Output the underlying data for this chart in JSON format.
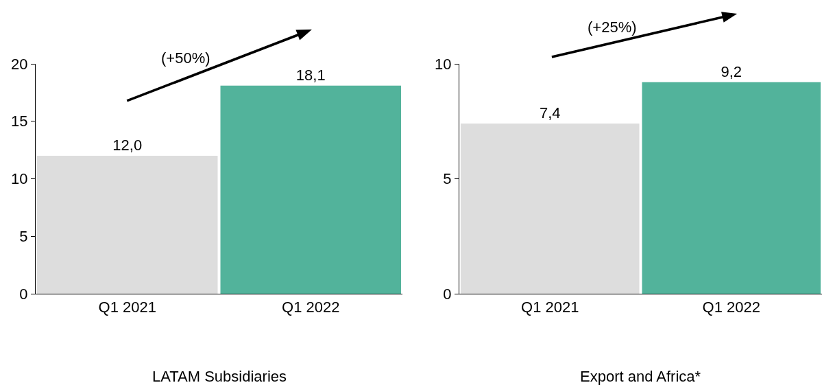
{
  "chart_data": [
    {
      "type": "bar",
      "xlabel": "LATAM Subsidiaries",
      "categories": [
        "Q1 2021",
        "Q1 2022"
      ],
      "values": [
        12.0,
        18.1
      ],
      "colors": [
        "#dddddd",
        "#52b39b"
      ],
      "value_labels": [
        "12,0",
        "18,1"
      ],
      "ylim": [
        0,
        20
      ],
      "yticks": [
        0,
        5,
        10,
        15,
        20
      ],
      "grid": false,
      "annotations": [
        "(+50%)"
      ]
    },
    {
      "type": "bar",
      "xlabel": "Export and Africa*",
      "categories": [
        "Q1 2021",
        "Q1 2022"
      ],
      "values": [
        7.4,
        9.2
      ],
      "colors": [
        "#dddddd",
        "#52b39b"
      ],
      "value_labels": [
        "7,4",
        "9,2"
      ],
      "ylim": [
        0,
        10
      ],
      "yticks": [
        0,
        5,
        10
      ],
      "grid": false,
      "annotations": [
        "(+25%)"
      ]
    }
  ]
}
